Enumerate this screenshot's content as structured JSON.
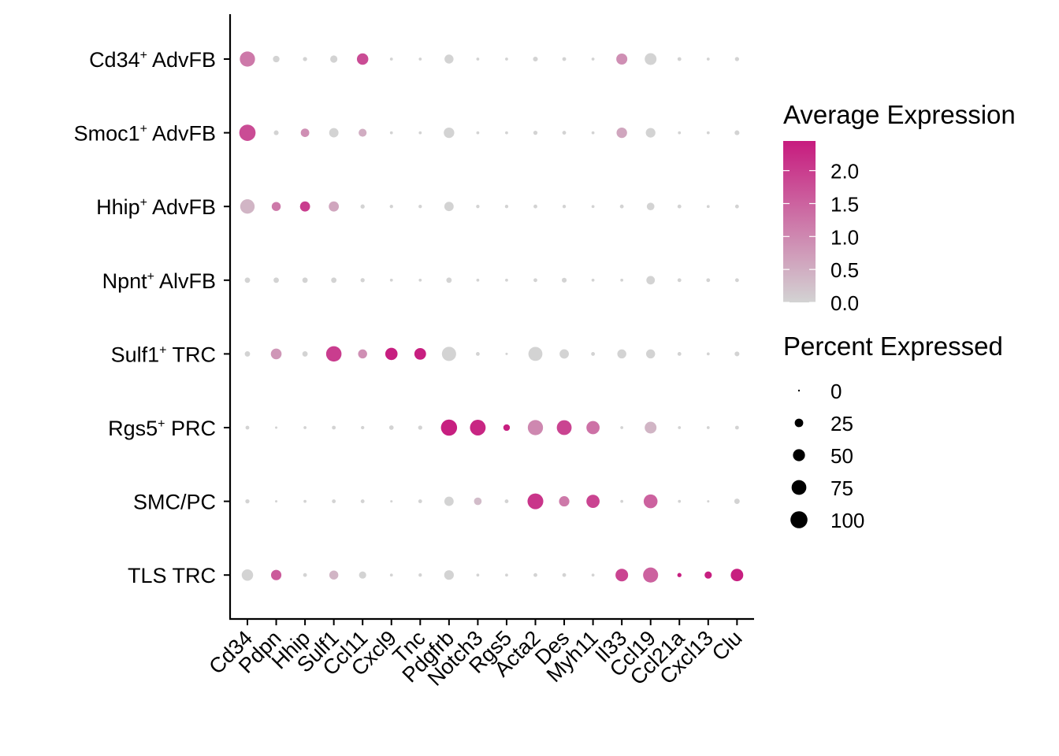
{
  "chart_data": {
    "type": "dotplot",
    "title": "",
    "xlabel": "",
    "ylabel": "",
    "grid": false,
    "genes": [
      "Cd34",
      "Pdpn",
      "Hhip",
      "Sulf1",
      "Ccl11",
      "Cxcl9",
      "Tnc",
      "Pdgfrb",
      "Notch3",
      "Rgs5",
      "Acta2",
      "Des",
      "Myh11",
      "Il33",
      "Ccl19",
      "Ccl21a",
      "Cxcl13",
      "Clu"
    ],
    "cell_types": [
      {
        "name": "Cd34",
        "sup": "+",
        "suffix": " AdvFB"
      },
      {
        "name": "Smoc1",
        "sup": "+",
        "suffix": " AdvFB"
      },
      {
        "name": "Hhip",
        "sup": "+",
        "suffix": " AdvFB"
      },
      {
        "name": "Npnt",
        "sup": "+",
        "suffix": " AlvFB"
      },
      {
        "name": "Sulf1",
        "sup": "+",
        "suffix": " TRC"
      },
      {
        "name": "Rgs5",
        "sup": "+",
        "suffix": " PRC"
      },
      {
        "name": "SMC/PC",
        "sup": "",
        "suffix": ""
      },
      {
        "name": "TLS TRC",
        "sup": "",
        "suffix": ""
      }
    ],
    "percent_expressed": [
      [
        80,
        15,
        6,
        18,
        45,
        3,
        3,
        28,
        3,
        3,
        8,
        5,
        3,
        42,
        48,
        5,
        3,
        6
      ],
      [
        92,
        8,
        25,
        30,
        22,
        3,
        3,
        38,
        3,
        3,
        6,
        5,
        3,
        38,
        32,
        3,
        3,
        8
      ],
      [
        72,
        28,
        35,
        35,
        6,
        4,
        4,
        30,
        4,
        4,
        5,
        4,
        3,
        5,
        20,
        5,
        3,
        5
      ],
      [
        10,
        10,
        10,
        10,
        6,
        3,
        3,
        10,
        3,
        3,
        5,
        8,
        3,
        3,
        25,
        5,
        5,
        5
      ],
      [
        10,
        40,
        10,
        82,
        28,
        52,
        47,
        70,
        5,
        2,
        68,
        30,
        5,
        28,
        28,
        5,
        3,
        8
      ],
      [
        5,
        2,
        3,
        5,
        4,
        7,
        6,
        90,
        85,
        15,
        80,
        76,
        60,
        3,
        48,
        3,
        3,
        5
      ],
      [
        6,
        2,
        3,
        5,
        5,
        2,
        5,
        30,
        20,
        5,
        86,
        37,
        60,
        3,
        66,
        3,
        2,
        10
      ],
      [
        45,
        37,
        5,
        28,
        18,
        3,
        4,
        32,
        3,
        3,
        5,
        5,
        3,
        55,
        78,
        6,
        18,
        54
      ]
    ],
    "avg_expression": [
      [
        1.2,
        0.0,
        0.0,
        0.0,
        1.8,
        0.0,
        0.0,
        0.0,
        0.0,
        0.0,
        0.0,
        0.0,
        0.0,
        0.9,
        0.0,
        0.0,
        0.0,
        0.0
      ],
      [
        1.8,
        0.0,
        0.9,
        0.0,
        0.5,
        0.0,
        0.0,
        0.0,
        0.0,
        0.0,
        0.0,
        0.0,
        0.0,
        0.6,
        0.0,
        0.0,
        0.0,
        0.0
      ],
      [
        0.4,
        1.2,
        2.0,
        0.6,
        0.0,
        0.0,
        0.0,
        0.0,
        0.0,
        0.0,
        0.0,
        0.0,
        0.0,
        0.0,
        0.0,
        0.0,
        0.0,
        0.0
      ],
      [
        0.0,
        0.0,
        0.0,
        0.0,
        0.0,
        0.0,
        0.0,
        0.0,
        0.0,
        0.0,
        0.0,
        0.0,
        0.0,
        0.0,
        0.0,
        0.0,
        0.0,
        0.0
      ],
      [
        0.0,
        0.8,
        0.0,
        2.0,
        0.9,
        2.4,
        2.4,
        0.0,
        0.0,
        0.0,
        0.0,
        0.0,
        0.0,
        0.0,
        0.0,
        0.0,
        0.0,
        0.0
      ],
      [
        0.0,
        0.0,
        0.0,
        0.0,
        0.0,
        0.0,
        0.0,
        2.4,
        2.3,
        2.4,
        1.0,
        1.9,
        1.3,
        0.0,
        0.4,
        0.0,
        0.0,
        0.0
      ],
      [
        0.0,
        0.0,
        0.0,
        0.0,
        0.0,
        0.0,
        0.0,
        0.0,
        0.3,
        0.0,
        2.1,
        1.2,
        1.9,
        0.0,
        1.5,
        0.0,
        0.0,
        0.0
      ],
      [
        0.0,
        1.6,
        0.0,
        0.4,
        0.0,
        0.0,
        0.0,
        0.0,
        0.0,
        0.0,
        0.0,
        0.0,
        0.0,
        1.9,
        1.5,
        2.4,
        2.4,
        2.4
      ]
    ],
    "color_legend": {
      "title": "Average Expression",
      "ticks": [
        "0.0",
        "0.5",
        "1.0",
        "1.5",
        "2.0"
      ],
      "tick_values": [
        0.0,
        0.5,
        1.0,
        1.5,
        2.0
      ],
      "range": [
        0.0,
        2.45
      ],
      "low_color": "#d3d3d3",
      "high_color": "#c71b7e"
    },
    "size_legend": {
      "title": "Percent Expressed",
      "ticks": [
        "0",
        "25",
        "50",
        "75",
        "100"
      ],
      "tick_values": [
        0,
        25,
        50,
        75,
        100
      ],
      "symbol_color": "#000000"
    },
    "legend_position": "right"
  }
}
